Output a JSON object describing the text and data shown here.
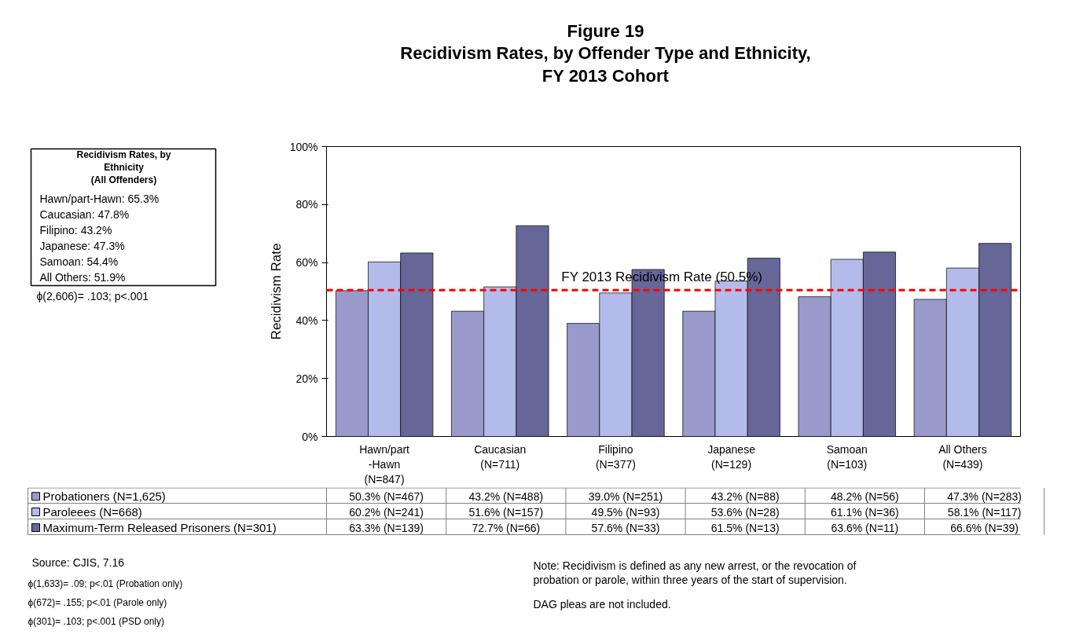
{
  "chart_data": {
    "type": "bar",
    "title": "Figure 19\nRecidivism Rates, by Offender Type and Ethnicity,\nFY 2013 Cohort",
    "ylabel": "Recidivism Rate",
    "categories": [
      "Hawn/part\n-Hawn\n(N=847)",
      "Caucasian\n(N=711)",
      "Filipino\n(N=377)",
      "Japanese\n(N=129)",
      "Samoan\n(N=103)",
      "All Others\n(N=439)"
    ],
    "series": [
      {
        "name": "Probationers  (N=1,625)",
        "color": "#9999cc",
        "values": [
          50.3,
          43.2,
          39.0,
          43.2,
          48.2,
          47.3
        ],
        "value_labels": [
          "50.3% (N=467)",
          "43.2% (N=488)",
          "39.0% (N=251)",
          "43.2% (N=88)",
          "48.2% (N=56)",
          "47.3% (N=283)"
        ]
      },
      {
        "name": "Paroleees (N=668)",
        "color": "#b3bbea",
        "values": [
          60.2,
          51.6,
          49.5,
          53.6,
          61.1,
          58.1
        ],
        "value_labels": [
          "60.2% (N=241)",
          "51.6% (N=157)",
          "49.5% (N=93)",
          "53.6% (N=28)",
          "61.1% (N=36)",
          "58.1% (N=117)"
        ]
      },
      {
        "name": "Maximum-Term Released Prisoners (N=301)",
        "color": "#666699",
        "values": [
          63.3,
          72.7,
          57.6,
          61.5,
          63.6,
          66.6
        ],
        "value_labels": [
          "63.3% (N=139)",
          "72.7% (N=66)",
          "57.6% (N=33)",
          "61.5% (N=13)",
          "63.6% (N=11)",
          "66.6% (N=39)"
        ]
      }
    ],
    "ylim": [
      0,
      100
    ],
    "yticks": [
      {
        "value": 0,
        "label": "0%"
      },
      {
        "value": 20,
        "label": "20%"
      },
      {
        "value": 40,
        "label": "40%"
      },
      {
        "value": 60,
        "label": "60%"
      },
      {
        "value": 80,
        "label": "80%"
      },
      {
        "value": 100,
        "label": "100%"
      }
    ],
    "ref_lines": [
      {
        "axis": "y",
        "value": 50.5,
        "label": "FY 2013 Recidivism Rate (50.5%)",
        "color": "#ff0000",
        "line_style": "dashed"
      }
    ],
    "legend": "bottom",
    "annotations": [
      "Recidivism Rates, by\nEthnicity\n(All Offenders)",
      "Hawn/part-Hawn: 65.3%",
      "Caucasian: 47.8%",
      "Filipino: 43.2%",
      "Japanese: 47.3%",
      "Samoan: 54.4%",
      "All Others: 51.9%",
      "ϕ(2,606)= .103; p<.001",
      "Source: CJIS, 7.16",
      "ϕ(1,633)= .09; p<.01 (Probation only)",
      "ϕ(672)= .155; p<.01 (Parole only)",
      "ϕ(301)= .103; p<.001 (PSD only)",
      "Note: Recidivism is defined as any new arrest, or the revocation of\nprobation or parole, within three years of the start of supervision.",
      "DAG pleas are not included."
    ]
  }
}
